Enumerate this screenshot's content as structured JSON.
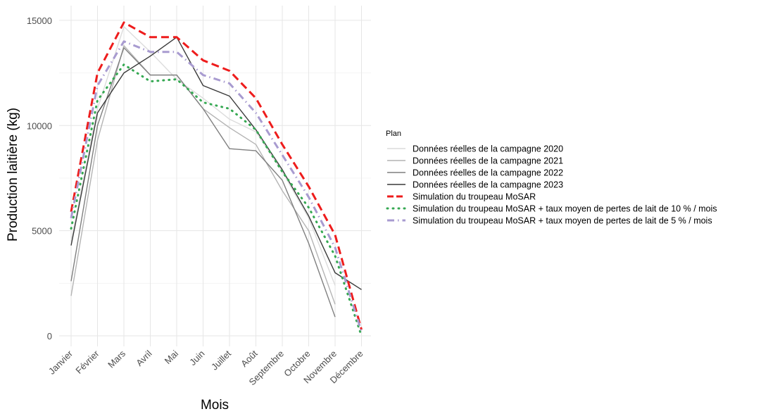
{
  "chart_data": {
    "type": "line",
    "xlabel": "Mois",
    "ylabel": "Production laitière (kg)",
    "categories": [
      "Janvier",
      "Février",
      "Mars",
      "Avril",
      "Mai",
      "Juin",
      "Juillet",
      "Août",
      "Septembre",
      "Octobre",
      "Novembre",
      "Décembre"
    ],
    "ylim": [
      -500,
      15700
    ],
    "yticks": [
      "0",
      "5000",
      "10000",
      "15000"
    ],
    "ytick_values": [
      0,
      5000,
      10000,
      15000
    ],
    "grid": true,
    "legend": {
      "title": "Plan",
      "position": "right"
    },
    "series": [
      {
        "name": "Données réelles de la campagne 2020",
        "color": "#dcdcdc",
        "dash": "solid",
        "width": 1.4,
        "values": [
          4500,
          10800,
          14700,
          13500,
          12200,
          11300,
          10300,
          9700,
          7800,
          5600,
          2400,
          null
        ]
      },
      {
        "name": "Données réelles de la campagne 2021",
        "color": "#b4b4b4",
        "dash": "solid",
        "width": 1.4,
        "values": [
          1900,
          9300,
          13800,
          12400,
          12400,
          10800,
          9900,
          9100,
          6900,
          5000,
          1500,
          null
        ]
      },
      {
        "name": "Données réelles de la campagne 2022",
        "color": "#7f7f7f",
        "dash": "solid",
        "width": 1.4,
        "values": [
          2600,
          10000,
          13700,
          12400,
          12400,
          10800,
          8900,
          8800,
          7400,
          4400,
          900,
          null
        ]
      },
      {
        "name": "Données réelles de la campagne 2023",
        "color": "#3a3a3a",
        "dash": "solid",
        "width": 1.4,
        "values": [
          4300,
          10600,
          12500,
          13300,
          14200,
          11900,
          11400,
          9800,
          7900,
          5700,
          3000,
          2200
        ]
      },
      {
        "name": "Simulation du troupeau MoSAR",
        "color": "#ee1c1c",
        "dash": "dashed",
        "width": 3,
        "values": [
          5900,
          12500,
          14900,
          14200,
          14200,
          13100,
          12600,
          11300,
          9100,
          7100,
          4800,
          300
        ]
      },
      {
        "name": "Simulation du troupeau MoSAR + taux moyen de pertes de lait de 10 % / mois",
        "color": "#35a852",
        "dash": "dotted",
        "width": 3,
        "values": [
          5100,
          11200,
          12900,
          12100,
          12200,
          11100,
          10800,
          9800,
          7800,
          6100,
          3800,
          0
        ]
      },
      {
        "name": "Simulation du troupeau MoSAR + taux moyen de pertes de lait de 5 % / mois",
        "color": "#a89bd0",
        "dash": "dotdash",
        "width": 3,
        "values": [
          5600,
          11900,
          14000,
          13500,
          13500,
          12400,
          12000,
          10600,
          8600,
          6600,
          4200,
          200
        ]
      }
    ]
  }
}
